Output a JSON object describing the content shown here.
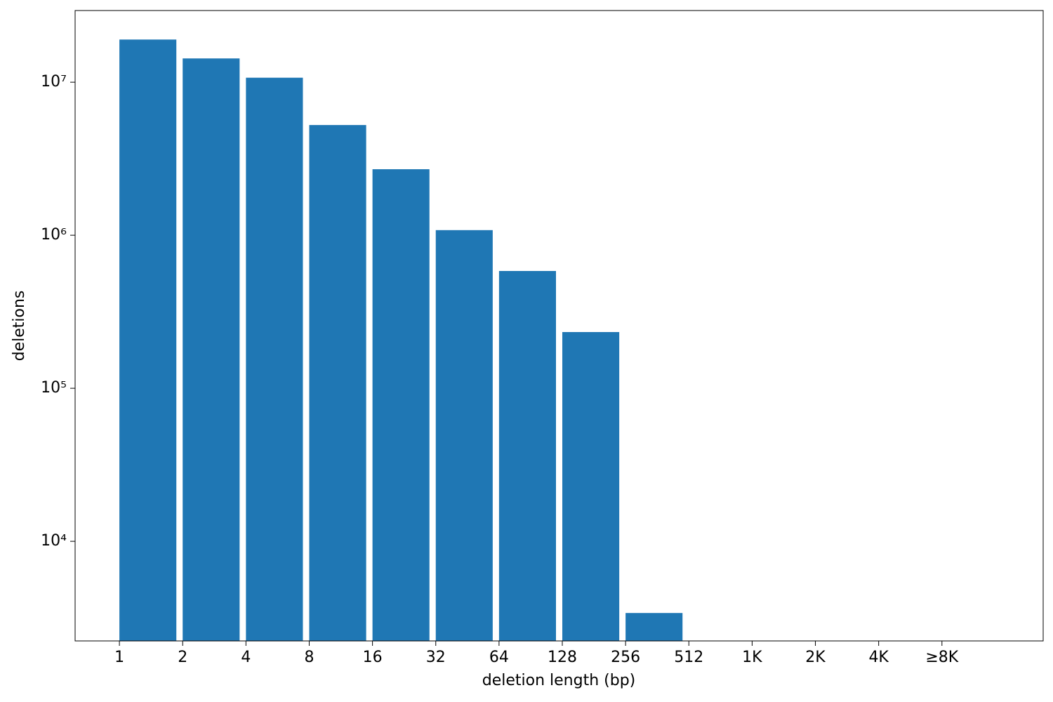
{
  "chart_data": {
    "type": "histogram",
    "xlabel": "deletion length (bp)",
    "ylabel": "deletions",
    "bins": [
      0,
      1,
      2,
      3,
      4,
      5,
      6,
      7,
      8,
      9
    ],
    "values": [
      19000000,
      14300000,
      10700000,
      5250000,
      2700000,
      1080000,
      584000,
      233000,
      3400
    ],
    "color": "#1f77b4",
    "xlim": [
      -0.7,
      14.6
    ],
    "xticks": [
      {
        "value": 0,
        "label": "1"
      },
      {
        "value": 1,
        "label": "2"
      },
      {
        "value": 2,
        "label": "4"
      },
      {
        "value": 3,
        "label": "8"
      },
      {
        "value": 4,
        "label": "16"
      },
      {
        "value": 5,
        "label": "32"
      },
      {
        "value": 6,
        "label": "64"
      },
      {
        "value": 7,
        "label": "128"
      },
      {
        "value": 8,
        "label": "256"
      },
      {
        "value": 9,
        "label": "512"
      },
      {
        "value": 10,
        "label": "1K"
      },
      {
        "value": 11,
        "label": "2K"
      },
      {
        "value": 12,
        "label": "4K"
      },
      {
        "value": 13,
        "label": "≥8K"
      }
    ],
    "ylim": [
      2234,
      29400000
    ],
    "yticks": [
      {
        "value": 10000,
        "label": "10⁴"
      },
      {
        "value": 100000,
        "label": "10⁵"
      },
      {
        "value": 1000000,
        "label": "10⁶"
      },
      {
        "value": 10000000,
        "label": "10⁷"
      }
    ],
    "log_y": true
  }
}
